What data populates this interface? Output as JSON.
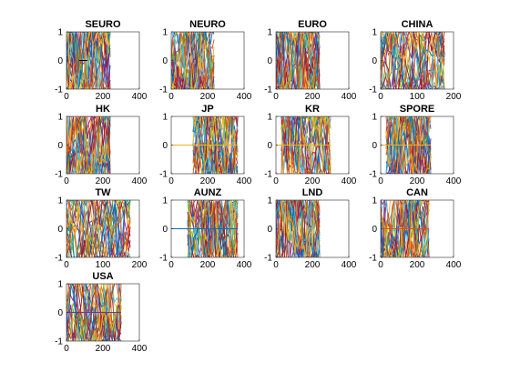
{
  "figure": {
    "background": "#ffffff",
    "axis_color": "#262626",
    "series_colors": [
      "#0072bd",
      "#d95319",
      "#edb120",
      "#7e2f8e",
      "#77ac30",
      "#4dbeee",
      "#a2142f"
    ]
  },
  "chart_data": [
    {
      "type": "line",
      "title": "SEURO",
      "xlim": [
        0,
        400
      ],
      "ylim": [
        -1,
        1
      ],
      "xticks": [
        "0",
        "200",
        "400"
      ],
      "yticks": [
        "-1",
        "0",
        "1"
      ],
      "x_range": [
        0,
        240
      ],
      "flat_line": {
        "x": [
          70,
          115
        ],
        "y": 0,
        "color": "#000000"
      }
    },
    {
      "type": "line",
      "title": "NEURO",
      "xlim": [
        0,
        400
      ],
      "ylim": [
        -1,
        1
      ],
      "xticks": [
        "0",
        "200",
        "400"
      ],
      "yticks": [
        "-1",
        "0",
        "1"
      ],
      "x_range": [
        0,
        235
      ]
    },
    {
      "type": "line",
      "title": "EURO",
      "xlim": [
        0,
        400
      ],
      "ylim": [
        -1,
        1
      ],
      "xticks": [
        "0",
        "200",
        "400"
      ],
      "yticks": [
        "-1",
        "0",
        "1"
      ],
      "x_range": [
        0,
        240
      ]
    },
    {
      "type": "line",
      "title": "CHINA",
      "xlim": [
        0,
        200
      ],
      "ylim": [
        -1,
        1
      ],
      "xticks": [
        "0",
        "100",
        "200"
      ],
      "yticks": [
        "-1",
        "0",
        "1"
      ],
      "x_range": [
        0,
        175
      ]
    },
    {
      "type": "line",
      "title": "HK",
      "xlim": [
        0,
        400
      ],
      "ylim": [
        -1,
        1
      ],
      "xticks": [
        "0",
        "200",
        "400"
      ],
      "yticks": [
        "-1",
        "0",
        "1"
      ],
      "x_range": [
        0,
        240
      ]
    },
    {
      "type": "line",
      "title": "JP",
      "xlim": [
        0,
        400
      ],
      "ylim": [
        -1,
        1
      ],
      "xticks": [
        "0",
        "200",
        "400"
      ],
      "yticks": [
        "-1",
        "0",
        "1"
      ],
      "x_range": [
        120,
        365
      ],
      "flat_line": {
        "x": [
          0,
          365
        ],
        "y": 0,
        "color": "#edb120"
      }
    },
    {
      "type": "line",
      "title": "KR",
      "xlim": [
        0,
        400
      ],
      "ylim": [
        -1,
        1
      ],
      "xticks": [
        "0",
        "200",
        "400"
      ],
      "yticks": [
        "-1",
        "0",
        "1"
      ],
      "x_range": [
        30,
        300
      ],
      "flat_line": {
        "x": [
          0,
          300
        ],
        "y": 0,
        "color": "#edb120"
      }
    },
    {
      "type": "line",
      "title": "SPORE",
      "xlim": [
        0,
        400
      ],
      "ylim": [
        -1,
        1
      ],
      "xticks": [
        "0",
        "200",
        "400"
      ],
      "yticks": [
        "-1",
        "0",
        "1"
      ],
      "x_range": [
        30,
        275
      ],
      "flat_line": {
        "x": [
          0,
          275
        ],
        "y": 0,
        "color": "#edb120"
      }
    },
    {
      "type": "line",
      "title": "TW",
      "xlim": [
        0,
        200
      ],
      "ylim": [
        -1,
        1
      ],
      "xticks": [
        "0",
        "100",
        "200"
      ],
      "yticks": [
        "-1",
        "0",
        "1"
      ],
      "x_range": [
        0,
        175
      ],
      "flat_line": {
        "x": [
          0,
          25
        ],
        "y": 0.97,
        "color": "#77ac30"
      }
    },
    {
      "type": "line",
      "title": "AUNZ",
      "xlim": [
        0,
        400
      ],
      "ylim": [
        -1,
        1
      ],
      "xticks": [
        "0",
        "200",
        "400"
      ],
      "yticks": [
        "-1",
        "0",
        "1"
      ],
      "x_range": [
        90,
        365
      ],
      "flat_line": {
        "x": [
          0,
          365
        ],
        "y": 0,
        "color": "#0072bd"
      }
    },
    {
      "type": "line",
      "title": "LND",
      "xlim": [
        0,
        400
      ],
      "ylim": [
        -1,
        1
      ],
      "xticks": [
        "0",
        "200",
        "400"
      ],
      "yticks": [
        "-1",
        "0",
        "1"
      ],
      "x_range": [
        0,
        240
      ]
    },
    {
      "type": "line",
      "title": "CAN",
      "xlim": [
        0,
        400
      ],
      "ylim": [
        -1,
        1
      ],
      "xticks": [
        "0",
        "200",
        "400"
      ],
      "yticks": [
        "-1",
        "0",
        "1"
      ],
      "x_range": [
        0,
        265
      ],
      "flat_line": {
        "x": [
          0,
          265
        ],
        "y": 0,
        "color": "#d95319"
      }
    },
    {
      "type": "line",
      "title": "USA",
      "xlim": [
        0,
        400
      ],
      "ylim": [
        -1,
        1
      ],
      "xticks": [
        "0",
        "200",
        "400"
      ],
      "yticks": [
        "-1",
        "0",
        "1"
      ],
      "x_range": [
        0,
        300
      ],
      "flat_line": {
        "x": [
          0,
          300
        ],
        "y": 0,
        "color": "#7e2f8e"
      }
    }
  ]
}
